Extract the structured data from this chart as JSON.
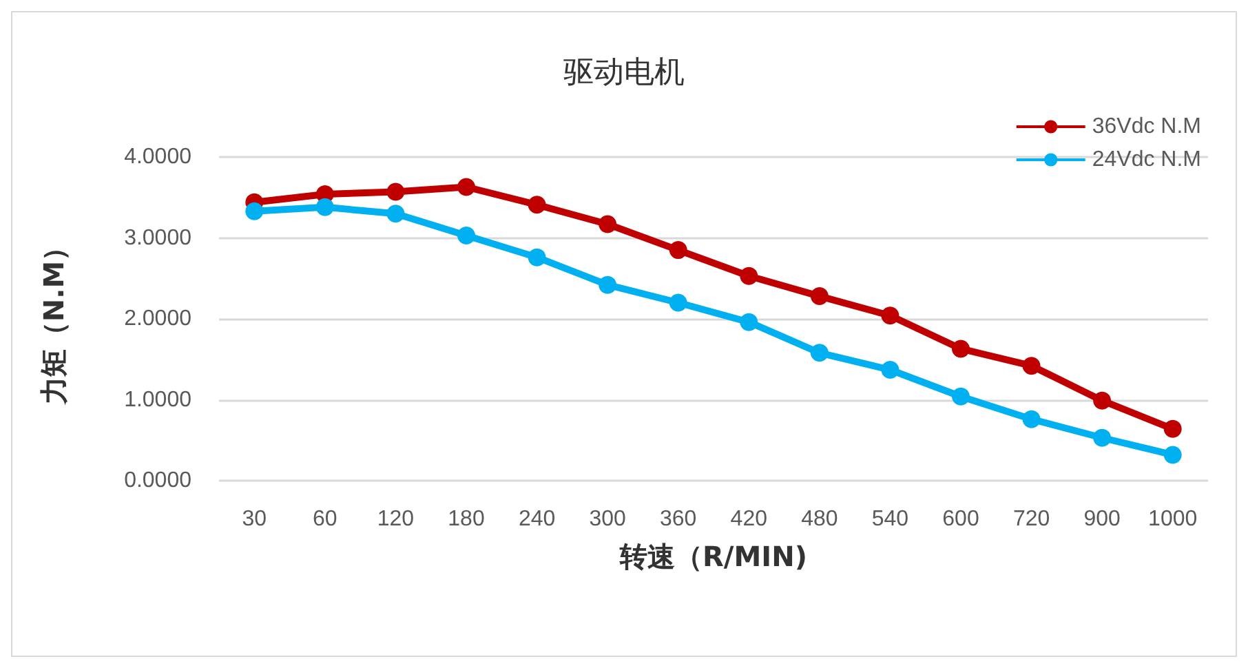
{
  "chart_data": {
    "type": "line",
    "title": "驱动电机",
    "xlabel": "转速（R/MIN)",
    "ylabel": "力矩（N.M）",
    "categories": [
      "30",
      "60",
      "120",
      "180",
      "240",
      "300",
      "360",
      "420",
      "480",
      "540",
      "600",
      "720",
      "900",
      "1000"
    ],
    "series": [
      {
        "name": "36Vdc N.M",
        "color": "#c00000",
        "values": [
          3.44,
          3.54,
          3.57,
          3.63,
          3.41,
          3.17,
          2.85,
          2.53,
          2.28,
          2.04,
          1.63,
          1.42,
          0.99,
          0.64
        ]
      },
      {
        "name": "24Vdc N.M",
        "color": "#00b0f0",
        "values": [
          3.33,
          3.38,
          3.3,
          3.03,
          2.76,
          2.42,
          2.2,
          1.96,
          1.58,
          1.37,
          1.04,
          0.76,
          0.53,
          0.32
        ]
      }
    ],
    "ylim": [
      0,
      4
    ],
    "yticks": [
      {
        "value": 0,
        "label": "0.0000"
      },
      {
        "value": 1,
        "label": "1.0000"
      },
      {
        "value": 2,
        "label": "2.0000"
      },
      {
        "value": 3,
        "label": "3.0000"
      },
      {
        "value": 4,
        "label": "4.0000"
      }
    ],
    "grid": "y",
    "legend": "top right",
    "marker": "circle",
    "line_style": "solid"
  }
}
